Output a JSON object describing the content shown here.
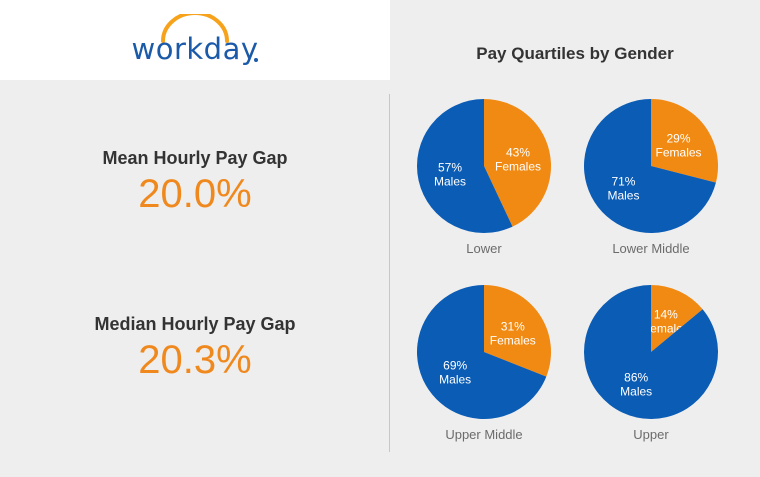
{
  "logo": {
    "text": "workday",
    "mark": "."
  },
  "metrics": [
    {
      "label": "Mean Hourly Pay Gap",
      "value": "20.0%"
    },
    {
      "label": "Median Hourly Pay Gap",
      "value": "20.3%"
    }
  ],
  "colors": {
    "males": "#0b5cb5",
    "females": "#f18a12",
    "accent": "#f0891d",
    "logo_blue": "#1a5aa8",
    "logo_arc": "#f7a21b"
  },
  "chart_data": {
    "type": "pie",
    "title": "Pay Quartiles by Gender",
    "charts": [
      {
        "category": "Lower",
        "slices": [
          {
            "name": "Females",
            "value": 43,
            "label": "43%"
          },
          {
            "name": "Males",
            "value": 57,
            "label": "57%"
          }
        ]
      },
      {
        "category": "Lower Middle",
        "slices": [
          {
            "name": "Females",
            "value": 29,
            "label": "29%"
          },
          {
            "name": "Males",
            "value": 71,
            "label": "71%"
          }
        ]
      },
      {
        "category": "Upper Middle",
        "slices": [
          {
            "name": "Females",
            "value": 31,
            "label": "31%"
          },
          {
            "name": "Males",
            "value": 69,
            "label": "69%"
          }
        ]
      },
      {
        "category": "Upper",
        "slices": [
          {
            "name": "Females",
            "value": 14,
            "label": "14%"
          },
          {
            "name": "Males",
            "value": 86,
            "label": "86%"
          }
        ]
      }
    ]
  }
}
